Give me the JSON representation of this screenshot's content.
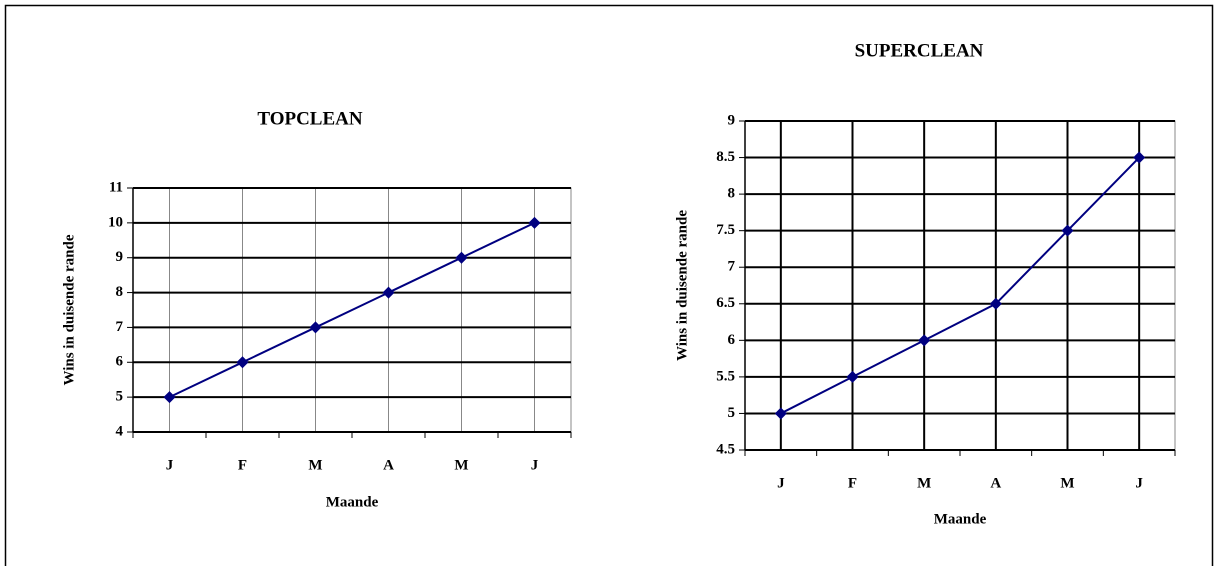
{
  "chart_data": [
    {
      "type": "line",
      "title": "TOPCLEAN",
      "x_label": "Maande",
      "y_label": "Wins in duisende rande",
      "categories": [
        "J",
        "F",
        "M",
        "A",
        "M",
        "J"
      ],
      "values": [
        5,
        6,
        7,
        8,
        9,
        10
      ],
      "color": "#000080",
      "ylim": [
        4,
        11
      ],
      "yticks": [
        4,
        5,
        6,
        7,
        8,
        9,
        10,
        11
      ],
      "grid": true,
      "xgrid_color": "#888888"
    },
    {
      "type": "line",
      "title": "SUPERCLEAN",
      "x_label": "Maande",
      "y_label": "Wins in duisende rande",
      "categories": [
        "J",
        "F",
        "M",
        "A",
        "M",
        "J"
      ],
      "values": [
        5,
        5.5,
        6,
        6.5,
        7.5,
        8.5
      ],
      "color": "#000080",
      "ylim": [
        4.5,
        9
      ],
      "yticks": [
        4.5,
        5,
        5.5,
        6,
        6.5,
        7,
        7.5,
        8,
        8.5,
        9
      ],
      "grid": true,
      "xgrid_color": "#000000"
    }
  ]
}
